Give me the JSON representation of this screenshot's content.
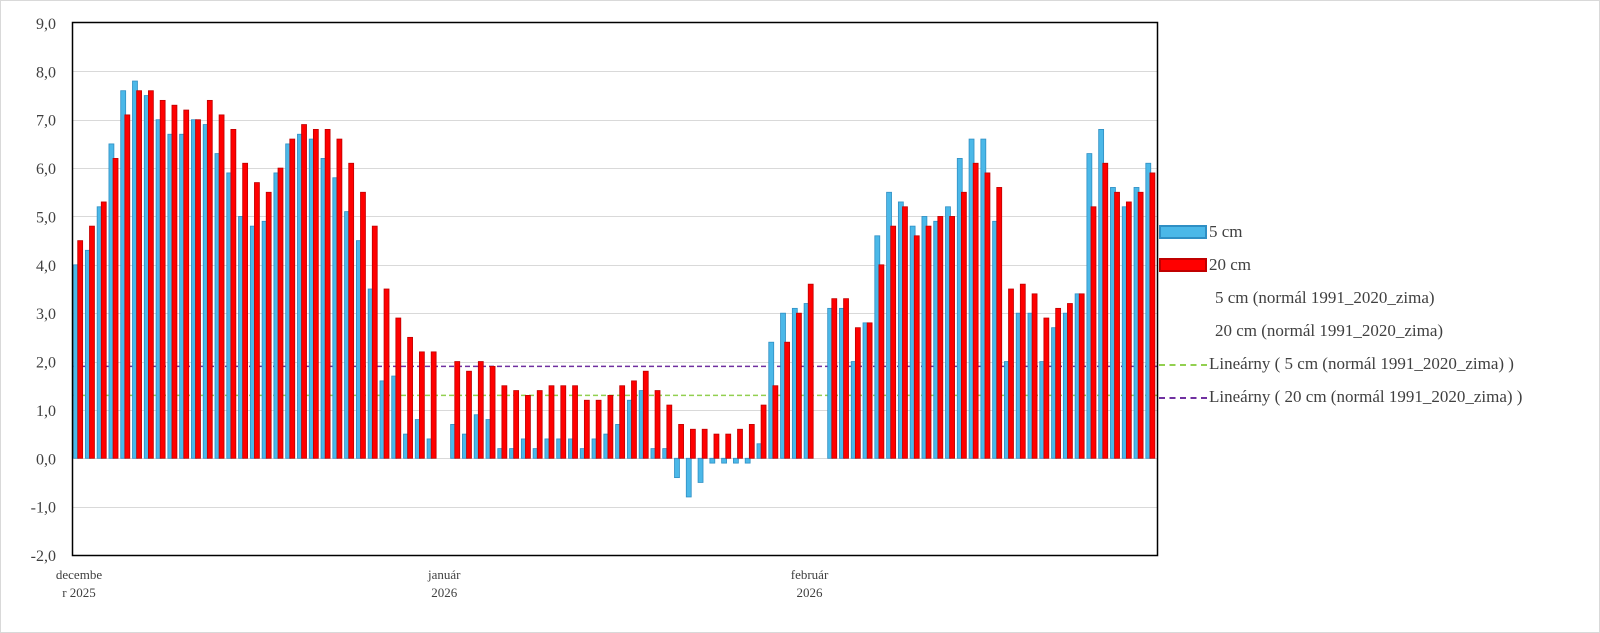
{
  "chart_data": {
    "type": "bar",
    "ylim": [
      -2,
      9
    ],
    "y_ticks": [
      "-2,0",
      "-1,0",
      "0,0",
      "1,0",
      "2,0",
      "3,0",
      "4,0",
      "5,0",
      "6,0",
      "7,0",
      "8,0",
      "9,0"
    ],
    "y_tick_values": [
      -2,
      -1,
      0,
      1,
      2,
      3,
      4,
      5,
      6,
      7,
      8,
      9
    ],
    "x_month_labels": [
      {
        "line1": "decembe",
        "line2": "r 2025",
        "day_index": 0
      },
      {
        "line1": "január",
        "line2": "2026",
        "day_index": 31
      },
      {
        "line1": "február",
        "line2": "2026",
        "day_index": 62
      }
    ],
    "grid": true,
    "legend_position": "right",
    "series": [
      {
        "name": "5 cm",
        "color": "#4bb8e8",
        "values": [
          4.0,
          4.3,
          5.2,
          6.5,
          7.6,
          7.8,
          7.5,
          7.0,
          6.7,
          6.7,
          7.0,
          6.9,
          6.3,
          5.9,
          5.0,
          4.8,
          4.9,
          5.9,
          6.5,
          6.7,
          6.6,
          6.2,
          5.8,
          5.1,
          4.5,
          3.5,
          1.6,
          1.7,
          0.5,
          0.8,
          0.4,
          null,
          0.7,
          0.5,
          0.9,
          0.8,
          0.2,
          0.2,
          0.4,
          0.2,
          0.4,
          0.4,
          0.4,
          0.2,
          0.4,
          0.5,
          0.7,
          1.2,
          1.4,
          0.2,
          0.2,
          -0.4,
          -0.8,
          -0.5,
          -0.1,
          -0.1,
          -0.1,
          -0.1,
          0.3,
          2.4,
          3.0,
          3.1,
          3.2,
          null,
          3.1,
          3.1,
          2.0,
          2.8,
          4.6,
          5.5,
          5.3,
          4.8,
          5.0,
          4.9,
          5.2,
          6.2,
          6.6,
          6.6,
          4.9,
          2.0,
          3.0,
          3.0,
          2.0,
          2.7,
          3.0,
          3.4,
          6.3,
          6.8,
          5.6,
          5.2,
          5.6,
          6.1
        ]
      },
      {
        "name": "20 cm",
        "color": "#ff0000",
        "values": [
          4.5,
          4.8,
          5.3,
          6.2,
          7.1,
          7.6,
          7.6,
          7.4,
          7.3,
          7.2,
          7.0,
          7.4,
          7.1,
          6.8,
          6.1,
          5.7,
          5.5,
          6.0,
          6.6,
          6.9,
          6.8,
          6.8,
          6.6,
          6.1,
          5.5,
          4.8,
          3.5,
          2.9,
          2.5,
          2.2,
          2.2,
          null,
          2.0,
          1.8,
          2.0,
          1.9,
          1.5,
          1.4,
          1.3,
          1.4,
          1.5,
          1.5,
          1.5,
          1.2,
          1.2,
          1.3,
          1.5,
          1.6,
          1.8,
          1.4,
          1.1,
          0.7,
          0.6,
          0.6,
          0.5,
          0.5,
          0.6,
          0.7,
          1.1,
          1.5,
          2.4,
          3.0,
          3.6,
          null,
          3.3,
          3.3,
          2.7,
          2.8,
          4.0,
          4.8,
          5.2,
          4.6,
          4.8,
          5.0,
          5.0,
          5.5,
          6.1,
          5.9,
          5.6,
          3.5,
          3.6,
          3.4,
          2.9,
          3.1,
          3.2,
          3.4,
          5.2,
          6.1,
          5.5,
          5.3,
          5.5,
          5.9
        ]
      }
    ],
    "reference_lines": [
      {
        "name": "Lineárny ( 5 cm (normál 1991_2020_zima) )",
        "value": 1.3,
        "color": "#92d050"
      },
      {
        "name": "Lineárny ( 20 cm (normál 1991_2020_zima) )",
        "value": 1.9,
        "color": "#7030a0"
      }
    ],
    "legend_entries": [
      {
        "label": "5 cm",
        "key": "bar",
        "color": "#4bb8e8"
      },
      {
        "label": "20 cm",
        "key": "bar",
        "color": "#ff0000"
      },
      {
        "label": "5 cm (normál 1991_2020_zima)",
        "key": "none"
      },
      {
        "label": "20 cm (normál 1991_2020_zima)",
        "key": "none"
      },
      {
        "label": "Lineárny ( 5 cm (normál 1991_2020_zima) )",
        "key": "dash",
        "color": "#92d050"
      },
      {
        "label": "Lineárny ( 20 cm (normál 1991_2020_zima) )",
        "key": "dash",
        "color": "#7030a0"
      }
    ]
  }
}
